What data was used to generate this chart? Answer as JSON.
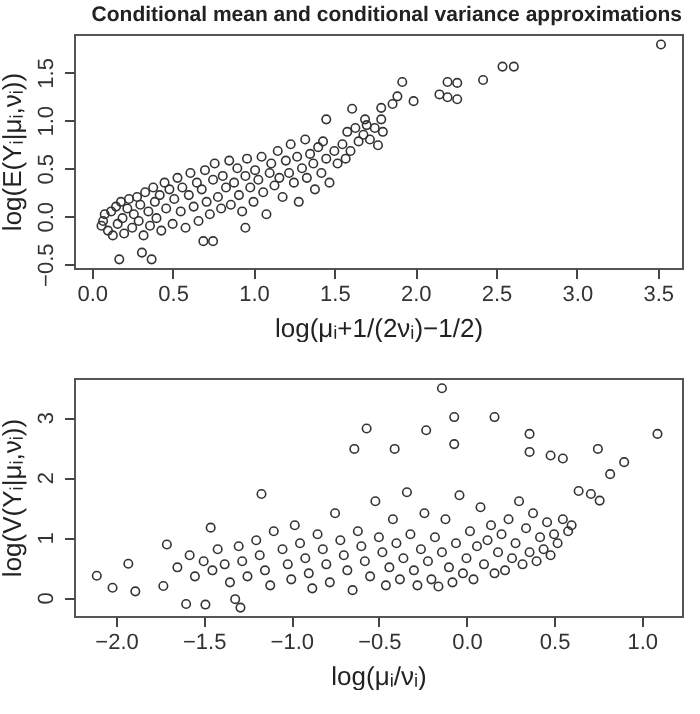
{
  "chart_data": [
    {
      "type": "scatter",
      "title": "Conditional mean and conditional variance approximations",
      "xlabel": "log(μᵢ+1/(2νᵢ)−1/2)",
      "ylabel": "log(E(Yᵢ|μᵢ,νᵢ))",
      "marker": "circle",
      "x": [
        0.06,
        0.07,
        0.08,
        0.1,
        0.12,
        0.13,
        0.15,
        0.16,
        0.18,
        0.19,
        0.2,
        0.22,
        0.23,
        0.25,
        0.26,
        0.28,
        0.29,
        0.3,
        0.32,
        0.33,
        0.35,
        0.36,
        0.38,
        0.39,
        0.4,
        0.42,
        0.43,
        0.45,
        0.46,
        0.48,
        0.5,
        0.51,
        0.53,
        0.55,
        0.56,
        0.58,
        0.6,
        0.61,
        0.63,
        0.65,
        0.66,
        0.68,
        0.7,
        0.71,
        0.73,
        0.75,
        0.76,
        0.78,
        0.8,
        0.81,
        0.83,
        0.85,
        0.86,
        0.88,
        0.9,
        0.91,
        0.93,
        0.95,
        0.96,
        0.98,
        1.0,
        1.01,
        1.03,
        1.05,
        1.06,
        1.08,
        1.1,
        1.11,
        1.13,
        1.15,
        1.16,
        1.18,
        1.2,
        1.22,
        1.23,
        1.25,
        1.27,
        1.28,
        1.3,
        1.32,
        1.33,
        1.35,
        1.37,
        1.38,
        1.4,
        1.42,
        1.43,
        1.45,
        1.47,
        1.5,
        1.52,
        1.55,
        1.57,
        1.58,
        1.6,
        1.63,
        1.65,
        1.68,
        1.7,
        1.72,
        1.75,
        1.8,
        3.52,
        2.61,
        2.54,
        2.42,
        2.2,
        2.26,
        2.26,
        2.2,
        2.15,
        1.92,
        1.99,
        1.89,
        1.86,
        1.79,
        1.79,
        1.77,
        1.61,
        1.45,
        1.69,
        0.37,
        0.31,
        0.17,
        0.69,
        0.75,
        0.95
      ],
      "values": [
        -0.1,
        -0.05,
        0.02,
        -0.15,
        0.05,
        -0.2,
        0.1,
        -0.08,
        0.15,
        -0.02,
        -0.18,
        0.08,
        0.18,
        -0.12,
        0.02,
        0.2,
        -0.05,
        0.12,
        -0.2,
        0.25,
        0.05,
        -0.1,
        0.3,
        0.15,
        -0.02,
        0.22,
        -0.15,
        0.35,
        0.08,
        0.28,
        -0.08,
        0.18,
        0.4,
        0.05,
        0.3,
        -0.12,
        0.22,
        0.45,
        0.1,
        0.35,
        -0.05,
        0.28,
        0.48,
        0.15,
        0.02,
        0.38,
        0.55,
        0.2,
        0.08,
        0.42,
        0.3,
        0.58,
        0.12,
        0.35,
        0.5,
        0.22,
        0.05,
        0.42,
        0.6,
        0.3,
        0.15,
        0.48,
        0.38,
        0.62,
        0.25,
        0.02,
        0.45,
        0.55,
        0.32,
        0.68,
        0.4,
        0.2,
        0.58,
        0.45,
        0.75,
        0.35,
        0.62,
        0.15,
        0.5,
        0.8,
        0.4,
        0.65,
        0.55,
        0.28,
        0.72,
        0.45,
        0.78,
        0.6,
        0.35,
        0.68,
        0.55,
        0.75,
        0.6,
        0.88,
        0.68,
        0.92,
        0.78,
        0.85,
        0.95,
        0.8,
        0.92,
        0.88,
        1.79,
        1.56,
        1.56,
        1.42,
        1.4,
        1.39,
        1.22,
        1.24,
        1.27,
        1.4,
        1.2,
        1.25,
        1.17,
        1.13,
        1.01,
        0.74,
        1.12,
        1.01,
        1.01,
        -0.45,
        -0.38,
        -0.45,
        -0.26,
        -0.26,
        -0.12
      ],
      "color": "#333333",
      "xlim": [
        -0.11,
        3.65
      ],
      "ylim": [
        -0.54,
        1.9
      ],
      "xticks": [
        {
          "value": 0,
          "label": "0.0"
        },
        0.5,
        {
          "value": 1,
          "label": "1.0"
        },
        1.5,
        {
          "value": 2,
          "label": "2.0"
        },
        2.5,
        {
          "value": 3,
          "label": "3.0"
        },
        3.5
      ],
      "yticks": [
        {
          "value": -0.5,
          "label": "−0.5"
        },
        {
          "value": 0,
          "label": "0.0"
        },
        0.5,
        {
          "value": 1,
          "label": "1.0"
        },
        1.5
      ]
    },
    {
      "type": "scatter",
      "xlabel": "log(μᵢ/νᵢ)",
      "ylabel": "log(V(Yᵢ|μᵢ,νᵢ))",
      "marker": "circle",
      "x": [
        -1.65,
        -1.58,
        -1.55,
        -1.5,
        -1.45,
        -1.42,
        -1.38,
        -1.35,
        -1.3,
        -1.28,
        -1.25,
        -1.2,
        -1.18,
        -1.15,
        -1.12,
        -1.1,
        -1.05,
        -1.02,
        -1.0,
        -0.98,
        -0.95,
        -0.92,
        -0.9,
        -0.88,
        -0.85,
        -0.82,
        -0.8,
        -0.78,
        -0.75,
        -0.72,
        -0.7,
        -0.68,
        -0.65,
        -0.62,
        -0.6,
        -0.58,
        -0.55,
        -0.52,
        -0.5,
        -0.48,
        -0.46,
        -0.44,
        -0.42,
        -0.4,
        -0.38,
        -0.36,
        -0.34,
        -0.32,
        -0.3,
        -0.28,
        -0.26,
        -0.24,
        -0.22,
        -0.2,
        -0.18,
        -0.16,
        -0.14,
        -0.12,
        -0.1,
        -0.08,
        -0.06,
        -0.04,
        -0.02,
        0.0,
        0.02,
        0.04,
        0.06,
        0.08,
        0.1,
        0.12,
        0.14,
        0.16,
        0.18,
        0.2,
        0.22,
        0.24,
        0.26,
        0.28,
        0.3,
        0.32,
        0.34,
        0.36,
        0.38,
        0.4,
        0.42,
        0.44,
        0.46,
        0.48,
        0.5,
        0.52,
        0.55,
        0.58,
        0.6,
        -0.14,
        -0.07,
        0.16,
        -0.23,
        -0.57,
        -0.64,
        -0.41,
        -0.07,
        0.36,
        1.09,
        0.75,
        0.82,
        0.9,
        0.36,
        0.48,
        0.55,
        -1.17,
        0.64,
        0.71,
        0.76,
        -2.11,
        -2.02,
        -1.93,
        -1.89,
        -1.73,
        -1.71,
        -1.6,
        -1.49,
        -1.29,
        -1.32,
        -1.46
      ],
      "values": [
        0.5,
        0.7,
        0.35,
        0.6,
        0.45,
        0.8,
        0.55,
        0.25,
        0.85,
        0.6,
        0.35,
        0.95,
        0.7,
        0.45,
        0.2,
        1.1,
        0.8,
        0.55,
        0.3,
        1.2,
        0.9,
        0.65,
        0.4,
        0.15,
        1.05,
        0.8,
        0.55,
        0.25,
        1.4,
        0.95,
        0.7,
        0.45,
        0.12,
        1.1,
        0.85,
        0.6,
        0.35,
        1.6,
        1.0,
        0.75,
        0.2,
        0.5,
        1.3,
        0.9,
        0.3,
        0.65,
        1.75,
        1.05,
        0.45,
        0.2,
        0.8,
        1.4,
        0.6,
        0.3,
        1.0,
        0.18,
        0.75,
        1.3,
        0.5,
        0.25,
        0.9,
        1.7,
        0.4,
        0.65,
        1.1,
        0.3,
        0.85,
        1.5,
        0.55,
        0.95,
        1.2,
        0.4,
        0.75,
        1.05,
        0.45,
        1.3,
        0.65,
        0.9,
        1.6,
        0.55,
        1.15,
        0.75,
        1.4,
        0.6,
        1.0,
        0.8,
        1.25,
        0.7,
        1.05,
        0.9,
        1.3,
        1.1,
        1.2,
        3.48,
        3.0,
        3.0,
        2.78,
        2.81,
        2.47,
        2.47,
        2.55,
        2.72,
        2.72,
        2.47,
        2.05,
        2.25,
        2.42,
        2.36,
        2.31,
        1.72,
        1.77,
        1.72,
        1.61,
        0.36,
        0.16,
        0.56,
        0.1,
        0.19,
        0.88,
        -0.11,
        -0.12,
        -0.17,
        -0.03,
        1.16
      ],
      "color": "#333333",
      "xlim": [
        -2.24,
        1.23
      ],
      "ylim": [
        -0.31,
        3.65
      ],
      "xticks": [
        {
          "value": -2,
          "label": "−2.0"
        },
        {
          "value": -1.5,
          "label": "−1.5"
        },
        {
          "value": -1,
          "label": "−1.0"
        },
        {
          "value": -0.5,
          "label": "−0.5"
        },
        {
          "value": 0,
          "label": "0.0"
        },
        0.5,
        {
          "value": 1,
          "label": "1.0"
        }
      ],
      "yticks": [
        0,
        1,
        2,
        3
      ]
    }
  ]
}
